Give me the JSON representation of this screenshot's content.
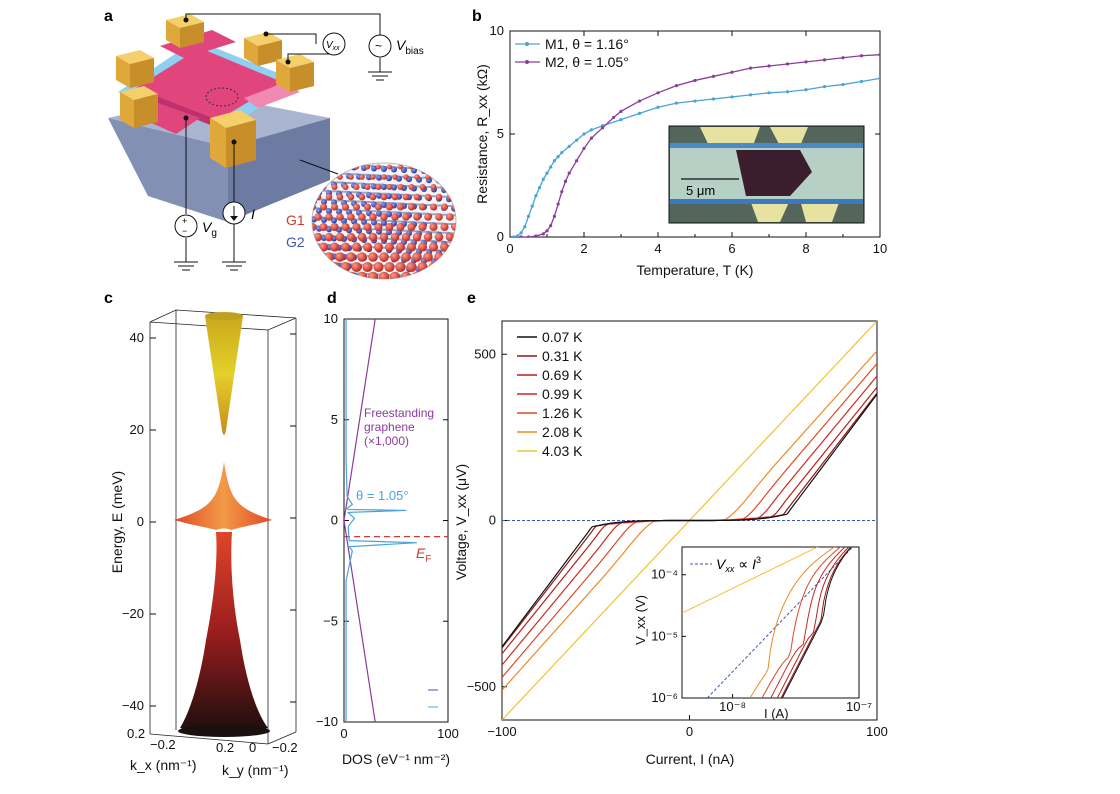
{
  "panel_labels": {
    "a": "a",
    "b": "b",
    "c": "c",
    "d": "d",
    "e": "e"
  },
  "panel_a": {
    "vxx": "V",
    "vxx_sub": "xx",
    "vbias": "V",
    "vbias_sub": "bias",
    "vg": "V",
    "vg_sub": "g",
    "current": "I",
    "g1": "G1",
    "g2": "G2",
    "plus": "+",
    "minus": "−",
    "tilde": "~",
    "colors": {
      "g1": "#d23a2e",
      "g2": "#3d5aa8",
      "contact": "#e8b84a",
      "channel": "#e0457b",
      "substrate": "#8896b8"
    }
  },
  "chart_data": [
    {
      "panel": "b",
      "type": "line",
      "xlabel": "Temperature, T (K)",
      "ylabel": "Resistance, R_xx (kΩ)",
      "xlim": [
        0,
        10
      ],
      "ylim": [
        0,
        10
      ],
      "xticks": [
        "0",
        "2",
        "4",
        "6",
        "8",
        "10"
      ],
      "yticks": [
        "0",
        "5",
        "10"
      ],
      "legend_position": "top-left",
      "inset_scale_label": "5 μm",
      "series": [
        {
          "name": "M1, θ = 1.16°",
          "color": "#4aa3d8",
          "x": [
            0.1,
            0.2,
            0.3,
            0.4,
            0.5,
            0.6,
            0.7,
            0.8,
            0.9,
            1.0,
            1.1,
            1.2,
            1.3,
            1.4,
            1.6,
            1.8,
            2.0,
            2.2,
            2.5,
            3.0,
            3.5,
            4.0,
            4.5,
            5.0,
            5.5,
            6.0,
            6.5,
            7.0,
            7.5,
            8.0,
            8.5,
            9.0,
            9.5,
            10.0
          ],
          "y": [
            0.0,
            0.05,
            0.2,
            0.5,
            1.0,
            1.5,
            2.0,
            2.4,
            2.8,
            3.1,
            3.4,
            3.7,
            3.9,
            4.1,
            4.4,
            4.7,
            5.0,
            5.2,
            5.4,
            5.7,
            6.0,
            6.3,
            6.5,
            6.6,
            6.7,
            6.8,
            6.9,
            7.0,
            7.05,
            7.15,
            7.3,
            7.4,
            7.55,
            7.7
          ]
        },
        {
          "name": "M2, θ = 1.05°",
          "color": "#8a3d9c",
          "x": [
            0.3,
            0.5,
            0.7,
            0.9,
            1.0,
            1.1,
            1.2,
            1.3,
            1.4,
            1.5,
            1.6,
            1.8,
            2.0,
            2.2,
            2.5,
            2.8,
            3.0,
            3.5,
            4.0,
            4.5,
            5.0,
            5.5,
            6.0,
            6.5,
            7.0,
            7.5,
            8.0,
            8.5,
            9.0,
            9.5,
            10.0
          ],
          "y": [
            0.0,
            0.0,
            0.05,
            0.15,
            0.3,
            0.55,
            1.0,
            1.6,
            2.2,
            2.7,
            3.1,
            3.7,
            4.3,
            4.8,
            5.3,
            5.8,
            6.1,
            6.6,
            7.0,
            7.35,
            7.6,
            7.8,
            8.0,
            8.2,
            8.3,
            8.4,
            8.5,
            8.6,
            8.7,
            8.8,
            8.85
          ]
        }
      ]
    },
    {
      "panel": "c",
      "type": "surface",
      "ylabel": "Energy, E (meV)",
      "xlabel_kx": "k_x (nm⁻¹)",
      "xlabel_ky": "k_y (nm⁻¹)",
      "yticks": [
        "40",
        "20",
        "0",
        "−20",
        "−40"
      ],
      "kx_ticks": [
        "0.2",
        "−0.2"
      ],
      "ky_ticks": [
        "0.2",
        "0",
        "−0.2"
      ],
      "ylim": [
        -45,
        45
      ]
    },
    {
      "panel": "d",
      "type": "line",
      "xlabel": "DOS (eV⁻¹ nm⁻²)",
      "xlim": [
        0,
        100
      ],
      "ylim": [
        -10,
        10
      ],
      "xticks": [
        "0",
        "100"
      ],
      "yticks": [
        "10",
        "5",
        "0",
        "−5",
        "−10"
      ],
      "annotations": {
        "freestanding": [
          "Freestanding",
          "graphene",
          "(×1,000)"
        ],
        "theta": "θ = 1.05°",
        "ef": "E",
        "ef_sub": "F"
      },
      "ef_level": -0.8,
      "series": [
        {
          "name": "Freestanding graphene (×1,000)",
          "color": "#8a3d9c",
          "x": [
            30,
            0,
            30
          ],
          "y": [
            -10,
            0,
            10
          ]
        },
        {
          "name": "θ = 1.05°",
          "color": "#4aa3d8",
          "x": [
            2,
            2,
            3,
            8,
            3,
            4,
            60,
            4,
            10,
            4,
            5,
            70,
            5,
            8,
            2,
            2
          ],
          "y": [
            10,
            3,
            1.2,
            0.8,
            0.6,
            0.55,
            0.5,
            0.4,
            0.1,
            -0.3,
            -1.0,
            -1.1,
            -1.3,
            -1.5,
            -3,
            -10
          ]
        }
      ]
    },
    {
      "panel": "e",
      "type": "line",
      "xlabel": "Current, I (nA)",
      "ylabel": "Voltage, V_xx (μV)",
      "xlim": [
        -100,
        100
      ],
      "ylim": [
        -600,
        600
      ],
      "xticks": [
        "−100",
        "0",
        "100"
      ],
      "yticks": [
        "500",
        "0",
        "−500"
      ],
      "legend_position": "top-left",
      "series": [
        {
          "name": "0.07 K",
          "color": "#111111",
          "ic": 52,
          "slope": 7.5,
          "w": 1.5
        },
        {
          "name": "0.31 K",
          "color": "#8c1a1a",
          "ic": 50,
          "slope": 7.3,
          "w": 3
        },
        {
          "name": "0.69 K",
          "color": "#b52020",
          "ic": 45,
          "slope": 7.0,
          "w": 9
        },
        {
          "name": "0.99 K",
          "color": "#cc2a22",
          "ic": 38,
          "slope": 6.8,
          "w": 16
        },
        {
          "name": "1.26 K",
          "color": "#dd4a26",
          "ic": 30,
          "slope": 6.6,
          "w": 24
        },
        {
          "name": "2.08 K",
          "color": "#ee8a22",
          "ic": 20,
          "slope": 6.3,
          "w": 40
        },
        {
          "name": "4.03 K",
          "color": "#f1c232",
          "ic": 0,
          "slope": 6.0,
          "w": 1
        }
      ],
      "inset": {
        "xlabel": "I (A)",
        "ylabel": "V_xx (V)",
        "xticks": [
          "10⁻⁸",
          "10⁻⁷"
        ],
        "yticks": [
          "10⁻⁴",
          "10⁻⁵",
          "10⁻⁶"
        ],
        "legend": "V_xx ∝ I³",
        "legend_parts": {
          "v": "V",
          "v_sub": "xx",
          "mid": " ∝ ",
          "i": "I",
          "i_sup": "3"
        }
      }
    }
  ]
}
